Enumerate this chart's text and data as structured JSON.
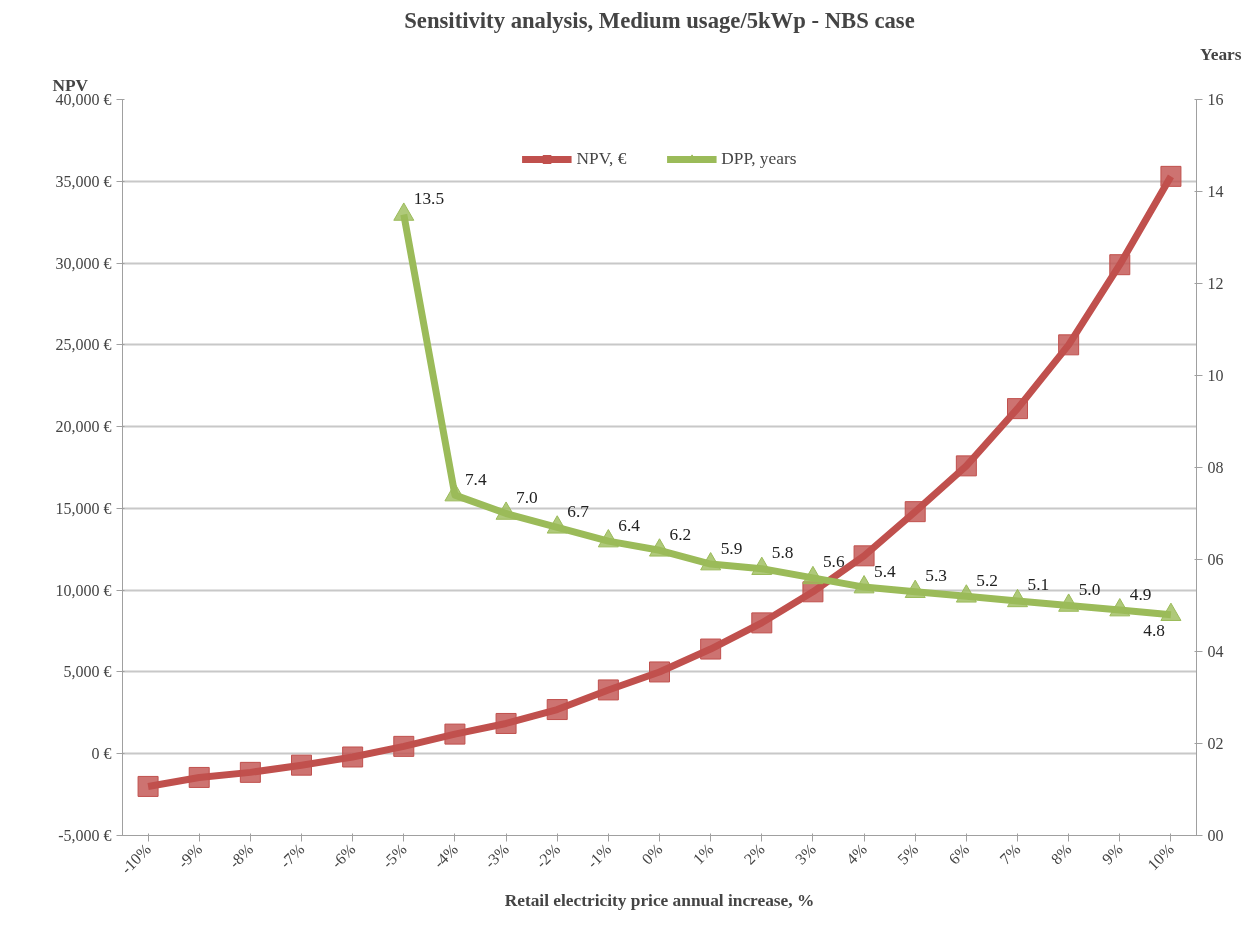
{
  "chart_data": {
    "type": "line",
    "title": "Sensitivity analysis, Medium usage/5kWp - NBS case",
    "xlabel": "Retail electricity price annual increase, %",
    "ylabel": "NPV",
    "y2label": "Years",
    "categories": [
      "-10%",
      "-9%",
      "-8%",
      "-7%",
      "-6%",
      "-5%",
      "-4%",
      "-3%",
      "-2%",
      "-1%",
      "0%",
      "1%",
      "2%",
      "3%",
      "4%",
      "5%",
      "6%",
      "7%",
      "8%",
      "9%",
      "10%"
    ],
    "series": [
      {
        "name": "NPV, €",
        "color": "#c0504d",
        "marker": "square",
        "values": [
          -2000,
          -1450,
          -1140,
          -700,
          -200,
          450,
          1200,
          1850,
          2700,
          3900,
          5000,
          6400,
          8000,
          9900,
          12100,
          14800,
          17600,
          21100,
          25000,
          29900,
          35300
        ]
      },
      {
        "name": "DPP, years",
        "color": "#9bbb59",
        "marker": "triangle",
        "axis": "y2",
        "values": [
          null,
          null,
          null,
          null,
          null,
          13.5,
          7.4,
          7.0,
          6.7,
          6.4,
          6.2,
          5.9,
          5.8,
          5.6,
          5.4,
          5.3,
          5.2,
          5.1,
          5.0,
          4.9,
          4.8
        ],
        "value_labels": [
          null,
          null,
          null,
          null,
          null,
          "13.5",
          "7.4",
          "7.0",
          "6.7",
          "6.4",
          "6.2",
          "5.9",
          "5.8",
          "5.6",
          "5.4",
          "5.3",
          "5.2",
          "5.1",
          "5.0",
          "4.9",
          "4.8"
        ]
      }
    ],
    "ylim": [
      -5000,
      40000
    ],
    "yticks": [
      {
        "value": -5000,
        "label": "-5,000 €"
      },
      {
        "value": 0,
        "label": "0 €"
      },
      {
        "value": 5000,
        "label": "5,000 €"
      },
      {
        "value": 10000,
        "label": "10,000 €"
      },
      {
        "value": 15000,
        "label": "15,000 €"
      },
      {
        "value": 20000,
        "label": "20,000 €"
      },
      {
        "value": 25000,
        "label": "25,000 €"
      },
      {
        "value": 30000,
        "label": "30,000 €"
      },
      {
        "value": 35000,
        "label": "35,000 €"
      },
      {
        "value": 40000,
        "label": "40,000 €"
      }
    ],
    "y2lim": [
      0,
      16
    ],
    "y2ticks": [
      {
        "value": 0,
        "label": "00"
      },
      {
        "value": 2,
        "label": "02"
      },
      {
        "value": 4,
        "label": "04"
      },
      {
        "value": 6,
        "label": "06"
      },
      {
        "value": 8,
        "label": "08"
      },
      10,
      12,
      14,
      16
    ],
    "grid": "y",
    "legend": "top",
    "line_style": "solid"
  }
}
